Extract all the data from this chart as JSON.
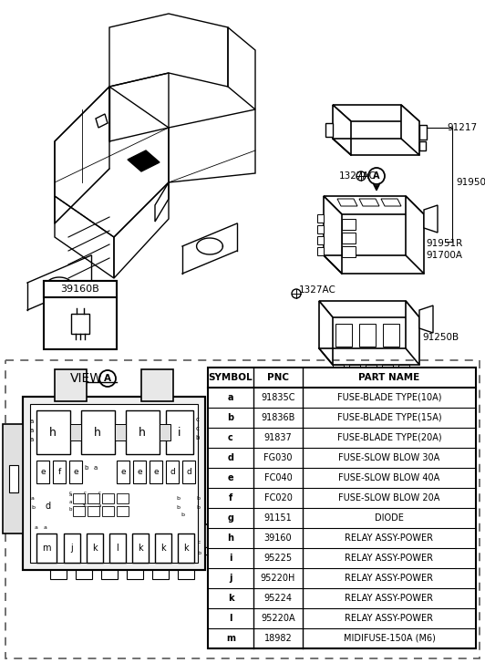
{
  "bg_color": "#ffffff",
  "table_headers": [
    "SYMBOL",
    "PNC",
    "PART NAME"
  ],
  "table_rows": [
    [
      "a",
      "91835C",
      "FUSE-BLADE TYPE(10A)"
    ],
    [
      "b",
      "91836B",
      "FUSE-BLADE TYPE(15A)"
    ],
    [
      "c",
      "91837",
      "FUSE-BLADE TYPE(20A)"
    ],
    [
      "d",
      "FG030",
      "FUSE-SLOW BLOW 30A"
    ],
    [
      "e",
      "FC040",
      "FUSE-SLOW BLOW 40A"
    ],
    [
      "f",
      "FC020",
      "FUSE-SLOW BLOW 20A"
    ],
    [
      "g",
      "91151",
      "DIODE"
    ],
    [
      "h",
      "39160",
      "RELAY ASSY-POWER"
    ],
    [
      "i",
      "95225",
      "RELAY ASSY-POWER"
    ],
    [
      "j",
      "95220H",
      "RELAY ASSY-POWER"
    ],
    [
      "k",
      "95224",
      "RELAY ASSY-POWER"
    ],
    [
      "l",
      "95220A",
      "RELAY ASSY-POWER"
    ],
    [
      "m",
      "18982",
      "MIDIFUSE-150A (M6)"
    ]
  ],
  "dashed_border_color": "#666666"
}
